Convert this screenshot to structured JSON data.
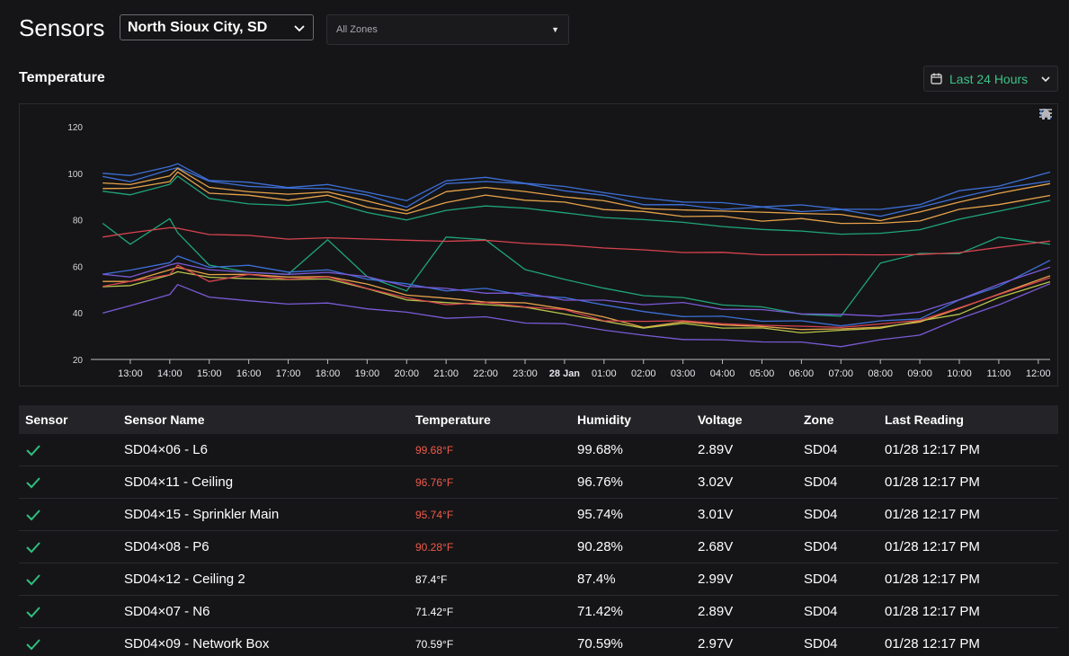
{
  "header": {
    "title": "Sensors",
    "location": "North Sioux City, SD",
    "zone_placeholder": "All Zones"
  },
  "section": {
    "title": "Temperature",
    "range_label": "Last 24 Hours"
  },
  "chart_data": {
    "type": "line",
    "title": "",
    "xlabel": "",
    "ylabel": "",
    "ylim": [
      20,
      120
    ],
    "yticks": [
      "120",
      "100",
      "80",
      "60",
      "40",
      "20"
    ],
    "xticks": [
      "13:00",
      "14:00",
      "15:00",
      "16:00",
      "17:00",
      "18:00",
      "19:00",
      "20:00",
      "21:00",
      "22:00",
      "23:00",
      "28 Jan",
      "01:00",
      "02:00",
      "03:00",
      "04:00",
      "05:00",
      "06:00",
      "07:00",
      "08:00",
      "09:00",
      "10:00",
      "11:00",
      "12:00"
    ],
    "grid": false,
    "colors": {
      "blue": "#3d6fd6",
      "orange": "#e6a24a",
      "green": "#1fa57a",
      "red": "#d8434f",
      "purple": "#7a5ad6",
      "yellowgreen": "#b9c449"
    },
    "x": [
      12.3,
      13.0,
      14.0,
      14.2,
      15.0,
      16.0,
      17.0,
      18.0,
      19.0,
      20.0,
      21.0,
      22.0,
      23.0,
      24.0,
      25.0,
      26.0,
      27.0,
      28.0,
      29.0,
      30.0,
      31.0,
      32.0,
      33.0,
      34.0,
      35.0,
      36.3
    ],
    "series": [
      {
        "color": "#3d6fd6",
        "values": [
          100,
          99,
          103,
          104,
          97,
          96,
          94,
          95,
          92,
          88,
          97,
          98,
          96,
          94,
          92,
          89,
          88,
          87,
          86,
          86,
          85,
          84,
          87,
          92,
          95,
          100
        ]
      },
      {
        "color": "#3d6fd6",
        "values": [
          98,
          97,
          101,
          103,
          96,
          95,
          93,
          94,
          90,
          86,
          95,
          97,
          95,
          93,
          90,
          87,
          86,
          85,
          85,
          84,
          84,
          82,
          85,
          90,
          93,
          97
        ]
      },
      {
        "color": "#e6a24a",
        "values": [
          96,
          95,
          99,
          102,
          94,
          92,
          91,
          92,
          88,
          84,
          92,
          94,
          92,
          90,
          88,
          85,
          84,
          84,
          83,
          83,
          82,
          80,
          83,
          88,
          91,
          96
        ]
      },
      {
        "color": "#e6a24a",
        "values": [
          94,
          93,
          97,
          100,
          92,
          90,
          89,
          90,
          86,
          82,
          88,
          90,
          89,
          87,
          85,
          83,
          82,
          81,
          80,
          80,
          79,
          78,
          80,
          84,
          87,
          90
        ]
      },
      {
        "color": "#1fa57a",
        "values": [
          92,
          91,
          95,
          99,
          89,
          87,
          86,
          88,
          83,
          80,
          84,
          86,
          85,
          83,
          81,
          80,
          79,
          77,
          76,
          75,
          74,
          74,
          76,
          80,
          84,
          88
        ]
      },
      {
        "color": "#1fa57a",
        "values": [
          78,
          70,
          80,
          75,
          60,
          58,
          56,
          72,
          55,
          50,
          72,
          72,
          58,
          55,
          50,
          48,
          46,
          44,
          42,
          40,
          38,
          62,
          65,
          66,
          72,
          70
        ]
      },
      {
        "color": "#d8434f",
        "values": [
          73,
          74,
          77,
          76,
          74,
          73,
          72,
          72,
          72,
          71,
          71,
          71,
          70,
          69,
          68,
          67,
          66,
          66,
          65,
          65,
          65,
          65,
          65,
          66,
          68,
          71
        ]
      },
      {
        "color": "#3d6fd6",
        "values": [
          57,
          58,
          62,
          64,
          60,
          60,
          58,
          58,
          55,
          52,
          50,
          50,
          48,
          46,
          44,
          40,
          39,
          38,
          37,
          36,
          35,
          36,
          38,
          45,
          52,
          62
        ]
      },
      {
        "color": "#e6a24a",
        "values": [
          53,
          54,
          58,
          60,
          56,
          57,
          55,
          56,
          52,
          48,
          46,
          45,
          44,
          42,
          38,
          34,
          36,
          35,
          34,
          33,
          33,
          34,
          36,
          42,
          48,
          56
        ]
      },
      {
        "color": "#b9c449",
        "values": [
          51,
          52,
          56,
          58,
          55,
          55,
          54,
          55,
          50,
          46,
          44,
          44,
          42,
          40,
          36,
          34,
          35,
          34,
          33,
          32,
          32,
          34,
          36,
          40,
          46,
          54
        ]
      },
      {
        "color": "#d8434f",
        "values": [
          52,
          53,
          57,
          60,
          54,
          56,
          55,
          55,
          51,
          46,
          44,
          44,
          43,
          41,
          37,
          36,
          37,
          35,
          35,
          34,
          34,
          35,
          37,
          42,
          48,
          55
        ]
      },
      {
        "color": "#7a5ad6",
        "values": [
          40,
          43,
          48,
          52,
          47,
          45,
          44,
          44,
          42,
          40,
          38,
          38,
          36,
          35,
          33,
          30,
          29,
          28,
          28,
          27,
          26,
          28,
          31,
          37,
          44,
          52
        ]
      },
      {
        "color": "#7a5ad6",
        "values": [
          56,
          56,
          60,
          62,
          58,
          58,
          56,
          58,
          55,
          52,
          50,
          49,
          48,
          46,
          45,
          44,
          44,
          42,
          41,
          40,
          39,
          39,
          40,
          46,
          52,
          60
        ]
      }
    ]
  },
  "table": {
    "headers": [
      "Sensor",
      "Sensor Name",
      "Temperature",
      "Humidity",
      "Voltage",
      "Zone",
      "Last Reading"
    ],
    "rows": [
      {
        "name": "SD04×06 - L6",
        "temp": "99.68°F",
        "humidity": "99.68%",
        "voltage": "2.89V",
        "zone": "SD04",
        "last": "01/28 12:17 PM",
        "hot": true
      },
      {
        "name": "SD04×11 - Ceiling",
        "temp": "96.76°F",
        "humidity": "96.76%",
        "voltage": "3.02V",
        "zone": "SD04",
        "last": "01/28 12:17 PM",
        "hot": true
      },
      {
        "name": "SD04×15 - Sprinkler Main",
        "temp": "95.74°F",
        "humidity": "95.74%",
        "voltage": "3.01V",
        "zone": "SD04",
        "last": "01/28 12:17 PM",
        "hot": true
      },
      {
        "name": "SD04×08 - P6",
        "temp": "90.28°F",
        "humidity": "90.28%",
        "voltage": "2.68V",
        "zone": "SD04",
        "last": "01/28 12:17 PM",
        "hot": true
      },
      {
        "name": "SD04×12 - Ceiling 2",
        "temp": "87.4°F",
        "humidity": "87.4%",
        "voltage": "2.99V",
        "zone": "SD04",
        "last": "01/28 12:17 PM",
        "hot": false
      },
      {
        "name": "SD04×07 - N6",
        "temp": "71.42°F",
        "humidity": "71.42%",
        "voltage": "2.89V",
        "zone": "SD04",
        "last": "01/28 12:17 PM",
        "hot": false
      },
      {
        "name": "SD04×09 - Network Box",
        "temp": "70.59°F",
        "humidity": "70.59%",
        "voltage": "2.97V",
        "zone": "SD04",
        "last": "01/28 12:17 PM",
        "hot": false
      }
    ]
  }
}
